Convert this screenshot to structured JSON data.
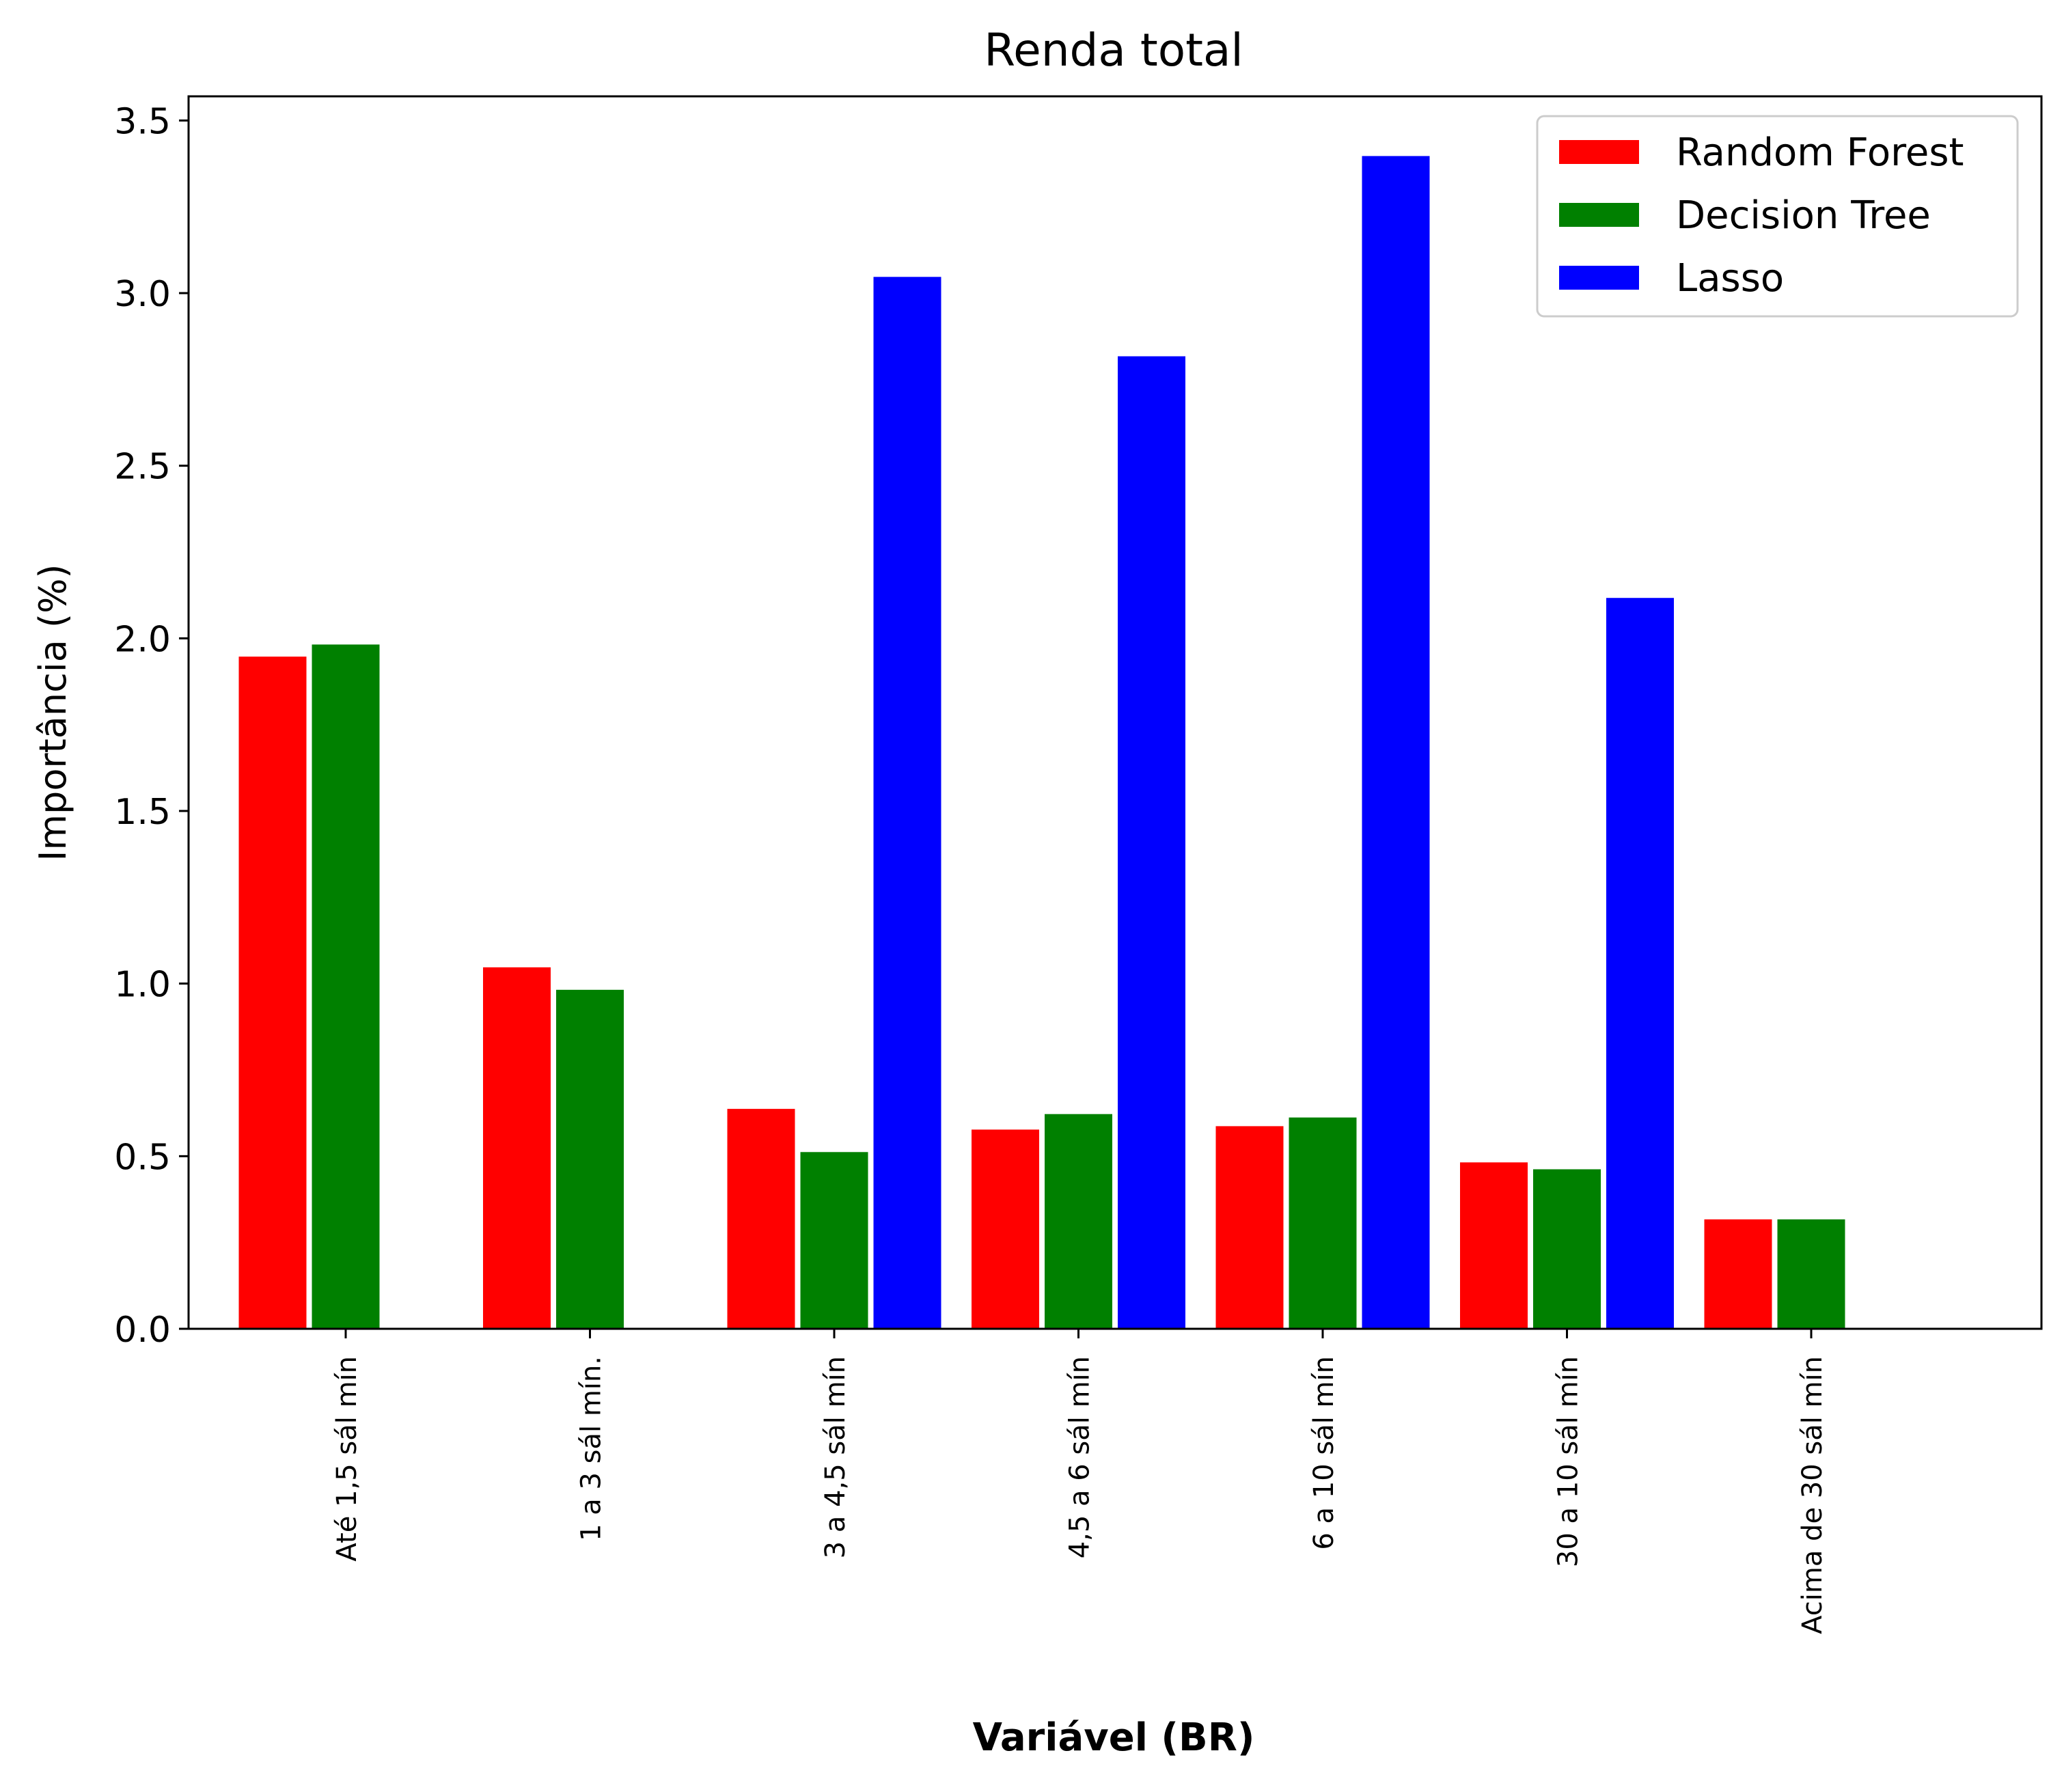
{
  "chart_data": {
    "type": "bar",
    "title": "Renda total",
    "xlabel": "Variável (BR)",
    "ylabel": "Importância (%)",
    "categories": [
      "Até 1,5 sál mín",
      "1 a 3 sál mín.",
      "3 a 4,5 sál mín",
      "4,5 a 6 sál mín",
      "6 a 10 sál mín",
      "30 a 10 sál mín",
      "Acima de 30 sál mín"
    ],
    "series": [
      {
        "name": "Random Forest",
        "color": "#ff0000",
        "values": [
          1.95,
          1.05,
          0.64,
          0.58,
          0.59,
          0.485,
          0.32
        ]
      },
      {
        "name": "Decision Tree",
        "color": "#008000",
        "values": [
          1.985,
          0.985,
          0.515,
          0.625,
          0.615,
          0.465,
          0.32
        ]
      },
      {
        "name": "Lasso",
        "color": "#0000ff",
        "values": [
          0,
          0,
          3.05,
          2.82,
          3.4,
          2.12,
          0
        ]
      }
    ],
    "ylim": [
      0,
      3.57
    ],
    "yticks": [
      "0.0",
      "0.5",
      "1.0",
      "1.5",
      "2.0",
      "2.5",
      "3.0",
      "3.5"
    ],
    "legend_position": "top-right",
    "grid": false
  }
}
